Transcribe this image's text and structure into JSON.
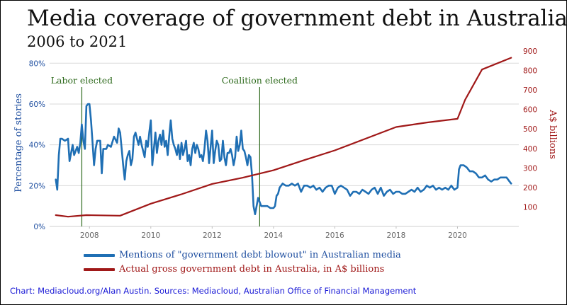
{
  "chart_data": {
    "type": "line",
    "title": "Media coverage of government debt in Australia",
    "subtitle": "2006 to 2021",
    "ylabel_left": "Percentage of stories",
    "ylabel_right": "A$ billions",
    "x_ticks": [
      "2008",
      "2010",
      "2012",
      "2014",
      "2016",
      "2018",
      "2020"
    ],
    "y_left_ticks": [
      "0%",
      "20%",
      "40%",
      "60%",
      "80%"
    ],
    "y_right_ticks": [
      "100",
      "200",
      "300",
      "400",
      "500",
      "600",
      "700",
      "800",
      "900"
    ],
    "xlim": [
      2006.7,
      2022.0
    ],
    "ylim_left": [
      0,
      0.86
    ],
    "ylim_right": [
      0,
      900
    ],
    "grid": true,
    "annotations": [
      {
        "x": 2007.75,
        "label": "Labor elected"
      },
      {
        "x": 2013.55,
        "label": "Coalition elected"
      }
    ],
    "series": [
      {
        "name": "Mentions of \"government debt blowout\" in Australian media",
        "axis": "left",
        "color": "#1f6fb4",
        "x": [
          2006.9,
          2006.95,
          2007.0,
          2007.05,
          2007.1,
          2007.2,
          2007.3,
          2007.35,
          2007.45,
          2007.5,
          2007.6,
          2007.65,
          2007.7,
          2007.75,
          2007.8,
          2007.85,
          2007.9,
          2007.95,
          2008.0,
          2008.05,
          2008.1,
          2008.15,
          2008.2,
          2008.25,
          2008.35,
          2008.4,
          2008.45,
          2008.55,
          2008.6,
          2008.7,
          2008.8,
          2008.9,
          2008.95,
          2009.0,
          2009.05,
          2009.1,
          2009.15,
          2009.2,
          2009.25,
          2009.3,
          2009.35,
          2009.4,
          2009.45,
          2009.5,
          2009.55,
          2009.6,
          2009.65,
          2009.7,
          2009.8,
          2009.85,
          2009.9,
          2009.95,
          2010.0,
          2010.05,
          2010.1,
          2010.15,
          2010.2,
          2010.25,
          2010.3,
          2010.35,
          2010.4,
          2010.45,
          2010.5,
          2010.55,
          2010.6,
          2010.65,
          2010.7,
          2010.75,
          2010.8,
          2010.85,
          2010.9,
          2010.95,
          2011.0,
          2011.05,
          2011.1,
          2011.15,
          2011.2,
          2011.25,
          2011.3,
          2011.35,
          2011.4,
          2011.45,
          2011.5,
          2011.55,
          2011.6,
          2011.65,
          2011.7,
          2011.75,
          2011.8,
          2011.85,
          2011.9,
          2011.95,
          2012.0,
          2012.05,
          2012.1,
          2012.15,
          2012.2,
          2012.25,
          2012.3,
          2012.35,
          2012.4,
          2012.45,
          2012.5,
          2012.55,
          2012.6,
          2012.65,
          2012.7,
          2012.75,
          2012.8,
          2012.85,
          2012.9,
          2012.95,
          2013.0,
          2013.05,
          2013.1,
          2013.15,
          2013.2,
          2013.25,
          2013.3,
          2013.35,
          2013.4,
          2013.5,
          2013.6,
          2013.7,
          2013.8,
          2013.9,
          2013.95,
          2014.0,
          2014.05,
          2014.1,
          2014.15,
          2014.2,
          2014.3,
          2014.4,
          2014.5,
          2014.6,
          2014.7,
          2014.8,
          2014.9,
          2015.0,
          2015.1,
          2015.2,
          2015.3,
          2015.4,
          2015.5,
          2015.6,
          2015.7,
          2015.8,
          2015.9,
          2016.0,
          2016.1,
          2016.2,
          2016.3,
          2016.4,
          2016.5,
          2016.6,
          2016.7,
          2016.8,
          2016.9,
          2017.0,
          2017.1,
          2017.2,
          2017.3,
          2017.4,
          2017.5,
          2017.6,
          2017.7,
          2017.8,
          2017.9,
          2018.0,
          2018.1,
          2018.2,
          2018.3,
          2018.4,
          2018.5,
          2018.6,
          2018.7,
          2018.8,
          2018.9,
          2019.0,
          2019.1,
          2019.2,
          2019.3,
          2019.4,
          2019.5,
          2019.6,
          2019.7,
          2019.8,
          2019.9,
          2020.0,
          2020.05,
          2020.1,
          2020.2,
          2020.3,
          2020.4,
          2020.5,
          2020.6,
          2020.7,
          2020.8,
          2020.9,
          2021.0,
          2021.1,
          2021.2,
          2021.3,
          2021.4,
          2021.5,
          2021.6,
          2021.7,
          2021.75
        ],
        "values": [
          0.23,
          0.18,
          0.35,
          0.43,
          0.43,
          0.42,
          0.43,
          0.32,
          0.4,
          0.35,
          0.39,
          0.36,
          0.41,
          0.5,
          0.42,
          0.38,
          0.59,
          0.6,
          0.6,
          0.52,
          0.41,
          0.3,
          0.38,
          0.42,
          0.42,
          0.26,
          0.38,
          0.38,
          0.4,
          0.39,
          0.44,
          0.41,
          0.48,
          0.46,
          0.38,
          0.3,
          0.23,
          0.32,
          0.35,
          0.37,
          0.3,
          0.33,
          0.44,
          0.46,
          0.43,
          0.4,
          0.44,
          0.4,
          0.34,
          0.42,
          0.39,
          0.46,
          0.52,
          0.3,
          0.38,
          0.46,
          0.36,
          0.42,
          0.45,
          0.4,
          0.47,
          0.39,
          0.42,
          0.35,
          0.44,
          0.52,
          0.43,
          0.4,
          0.38,
          0.35,
          0.4,
          0.33,
          0.41,
          0.35,
          0.38,
          0.42,
          0.32,
          0.35,
          0.3,
          0.38,
          0.41,
          0.36,
          0.4,
          0.38,
          0.34,
          0.35,
          0.32,
          0.38,
          0.47,
          0.42,
          0.31,
          0.39,
          0.47,
          0.31,
          0.37,
          0.42,
          0.4,
          0.32,
          0.33,
          0.42,
          0.34,
          0.3,
          0.36,
          0.36,
          0.38,
          0.35,
          0.3,
          0.34,
          0.44,
          0.37,
          0.4,
          0.47,
          0.38,
          0.37,
          0.34,
          0.3,
          0.35,
          0.34,
          0.25,
          0.1,
          0.06,
          0.14,
          0.1,
          0.1,
          0.1,
          0.09,
          0.09,
          0.09,
          0.1,
          0.15,
          0.16,
          0.19,
          0.21,
          0.2,
          0.2,
          0.21,
          0.2,
          0.21,
          0.17,
          0.2,
          0.2,
          0.19,
          0.2,
          0.18,
          0.19,
          0.17,
          0.19,
          0.2,
          0.2,
          0.16,
          0.19,
          0.2,
          0.19,
          0.18,
          0.15,
          0.17,
          0.17,
          0.16,
          0.18,
          0.17,
          0.16,
          0.18,
          0.19,
          0.16,
          0.19,
          0.15,
          0.17,
          0.18,
          0.16,
          0.17,
          0.17,
          0.16,
          0.16,
          0.17,
          0.18,
          0.17,
          0.19,
          0.17,
          0.18,
          0.2,
          0.19,
          0.2,
          0.18,
          0.19,
          0.18,
          0.19,
          0.18,
          0.2,
          0.18,
          0.19,
          0.28,
          0.3,
          0.3,
          0.29,
          0.27,
          0.27,
          0.26,
          0.24,
          0.24,
          0.25,
          0.23,
          0.22,
          0.23,
          0.23,
          0.24,
          0.24,
          0.24,
          0.22,
          0.21
        ],
        "marks": []
      },
      {
        "name": "Actual gross government debt in Australia, in A$ billions",
        "axis": "right",
        "color": "#a01818",
        "x": [
          2006.9,
          2007.3,
          2007.9,
          2009.0,
          2010.0,
          2011.0,
          2012.0,
          2013.0,
          2014.0,
          2015.0,
          2016.0,
          2017.0,
          2018.0,
          2019.0,
          2020.0,
          2020.25,
          2020.8,
          2021.75
        ],
        "values": [
          58,
          50,
          58,
          55,
          117,
          165,
          218,
          250,
          288,
          340,
          390,
          450,
          510,
          533,
          552,
          650,
          805,
          865
        ],
        "marks": []
      }
    ]
  },
  "source": "Chart: Mediacloud.org/Alan Austin. Sources: Mediacloud, Australian Office of Financial Management"
}
